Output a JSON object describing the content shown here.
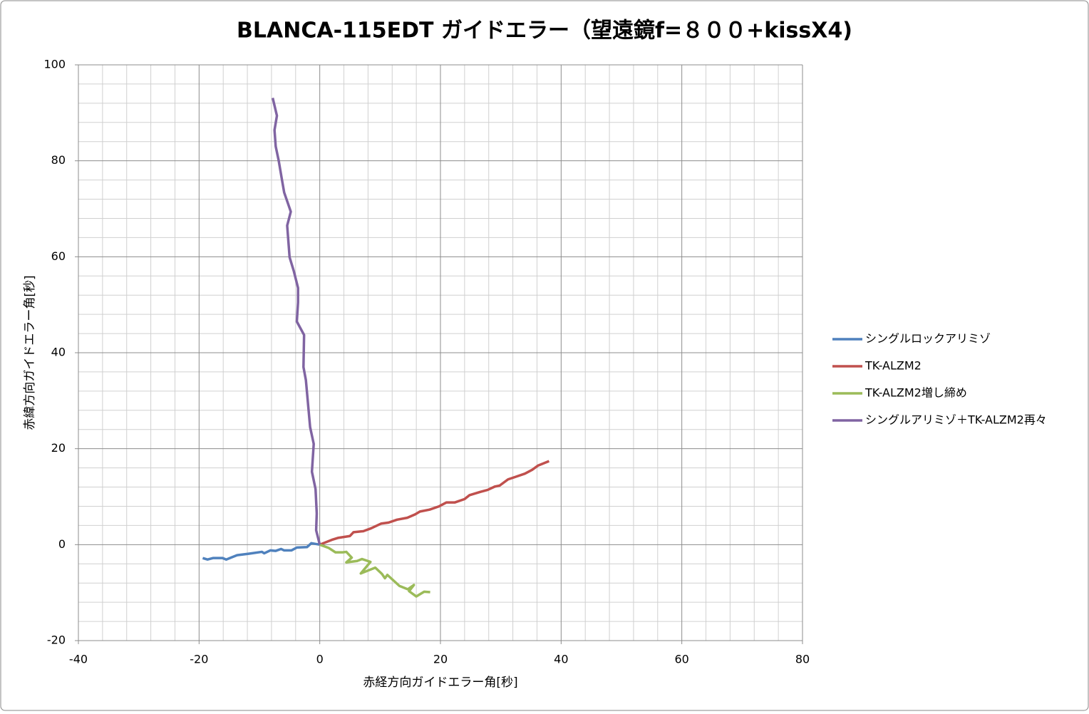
{
  "chart_data": {
    "type": "scatter-line",
    "title": "BLANCA-115EDT ガイドエラー（望遠鏡f=８００+kissX4)",
    "x_label": "赤経方向ガイドエラー角[秒]",
    "y_label": "赤緯方向ガイドエラー角[秒]",
    "xlim": [
      -40,
      80
    ],
    "ylim": [
      -20,
      100
    ],
    "xticks": [
      -40,
      -20,
      0,
      20,
      40,
      60,
      80
    ],
    "yticks": [
      -20,
      0,
      20,
      40,
      60,
      80,
      100
    ],
    "minor_xticks": [
      -36,
      -32,
      -28,
      -24,
      -16,
      -12,
      -8,
      -4,
      4,
      8,
      12,
      16,
      24,
      28,
      32,
      36,
      44,
      48,
      52,
      56,
      64,
      68,
      72,
      76
    ],
    "minor_yticks": [
      -16,
      -12,
      -8,
      -4,
      4,
      8,
      12,
      16,
      24,
      28,
      32,
      36,
      44,
      48,
      52,
      56,
      64,
      68,
      72,
      76,
      84,
      88,
      92,
      96
    ],
    "grid": true,
    "legend": "right",
    "series": [
      {
        "name": "シングルロックアリミゾ",
        "color": "#4f81bd",
        "x": [
          0,
          -1.4,
          -2.1,
          -3.8,
          -4.7,
          -5.9,
          -6.4,
          -7.3,
          -8.2,
          -9.2,
          -9.6,
          -11.8,
          -13.7,
          -14.7,
          -15.5,
          -16.1,
          -17.7,
          -18.6,
          -19.4
        ],
        "values": [
          0,
          0.3,
          -0.5,
          -0.6,
          -1.2,
          -1.2,
          -0.9,
          -1.3,
          -1.2,
          -1.8,
          -1.5,
          -1.9,
          -2.2,
          -2.7,
          -3.1,
          -2.8,
          -2.8,
          -3.1,
          -2.8
        ]
      },
      {
        "name": "TK-ALZM2",
        "color": "#c0504d",
        "x": [
          0,
          2,
          3,
          5,
          5.6,
          7.2,
          8.5,
          10.2,
          11.4,
          12.8,
          14.5,
          15.8,
          16.6,
          18.2,
          19.8,
          21,
          22.4,
          24,
          24.8,
          26.6,
          27.8,
          29,
          29.8,
          31.2,
          32.6,
          34,
          35.2,
          36.2,
          38
        ],
        "values": [
          0,
          1,
          1.4,
          1.8,
          2.6,
          2.8,
          3.4,
          4.4,
          4.6,
          5.2,
          5.6,
          6.3,
          6.9,
          7.3,
          8,
          8.8,
          8.8,
          9.5,
          10.3,
          11,
          11.4,
          12.1,
          12.3,
          13.6,
          14.2,
          14.8,
          15.6,
          16.5,
          17.4
        ]
      },
      {
        "name": "TK-ALZM2増し締め",
        "color": "#9bbb59",
        "x": [
          0,
          1.5,
          2.6,
          3.8,
          4.4,
          5.3,
          4.4,
          6.2,
          7,
          8.4,
          6.8,
          9.2,
          10.3,
          10.8,
          11.2,
          13.2,
          14.6,
          15.6,
          14.8,
          16,
          17.3,
          18.3
        ],
        "values": [
          0,
          -0.7,
          -1.6,
          -1.6,
          -1.5,
          -2.7,
          -3.7,
          -3.4,
          -3,
          -3.6,
          -6,
          -4.8,
          -6.1,
          -7,
          -6.3,
          -8.6,
          -9.3,
          -8.4,
          -9.7,
          -10.8,
          -9.8,
          -9.9
        ]
      },
      {
        "name": "シングルアリミゾ＋TK-ALZM2再々",
        "color": "#8064a2",
        "x": [
          0,
          -0.6,
          -0.5,
          -0.7,
          -1.3,
          -1,
          -1.6,
          -2.3,
          -2.7,
          -2.6,
          -3.8,
          -3.6,
          -3.6,
          -4.3,
          -5,
          -5.4,
          -4.8,
          -5.9,
          -6.3,
          -6.8,
          -7.3,
          -7.5,
          -7.1,
          -7.8
        ],
        "values": [
          0,
          3,
          6.5,
          11.6,
          15.2,
          21,
          24.5,
          34.3,
          37,
          43.7,
          46.5,
          50.5,
          53.5,
          57,
          59.9,
          66.5,
          69.4,
          73.4,
          76.3,
          80,
          83,
          86.4,
          89.4,
          93.1
        ]
      }
    ]
  }
}
